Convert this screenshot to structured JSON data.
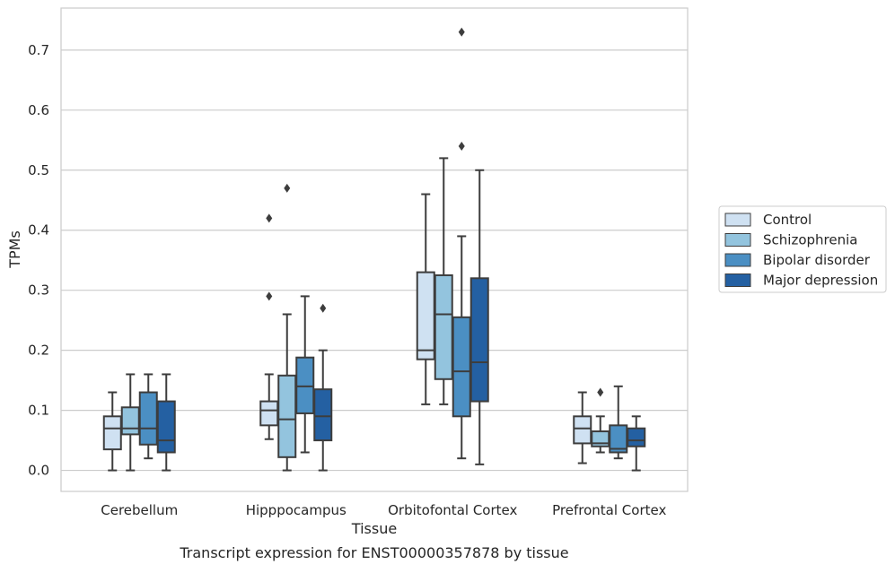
{
  "chart_data": {
    "type": "boxplot",
    "xlabel": "Tissue",
    "ylabel": "TPMs",
    "caption": "Transcript expression for ENST00000357878 by tissue",
    "ylim": [
      -0.035,
      0.77
    ],
    "yticks": [
      0.0,
      0.1,
      0.2,
      0.3,
      0.4,
      0.5,
      0.6,
      0.7
    ],
    "ytick_labels": [
      "0.0",
      "0.1",
      "0.2",
      "0.3",
      "0.4",
      "0.5",
      "0.6",
      "0.7"
    ],
    "grid": true,
    "legend_position": "right",
    "categories": [
      "Cerebellum",
      "Hipppocampus",
      "Orbitofontal Cortex",
      "Prefrontal Cortex"
    ],
    "series": [
      {
        "name": "Control",
        "color": "#cfe1f2",
        "boxes": [
          {
            "whislo": 0.0,
            "q1": 0.035,
            "med": 0.07,
            "q3": 0.09,
            "whishi": 0.13,
            "fliers": []
          },
          {
            "whislo": 0.052,
            "q1": 0.075,
            "med": 0.1,
            "q3": 0.115,
            "whishi": 0.16,
            "fliers": [
              0.29,
              0.42
            ]
          },
          {
            "whislo": 0.11,
            "q1": 0.185,
            "med": 0.2,
            "q3": 0.33,
            "whishi": 0.46,
            "fliers": []
          },
          {
            "whislo": 0.012,
            "q1": 0.045,
            "med": 0.07,
            "q3": 0.09,
            "whishi": 0.13,
            "fliers": []
          }
        ]
      },
      {
        "name": "Schizophrenia",
        "color": "#93c4de",
        "boxes": [
          {
            "whislo": 0.0,
            "q1": 0.06,
            "med": 0.07,
            "q3": 0.105,
            "whishi": 0.16,
            "fliers": []
          },
          {
            "whislo": 0.0,
            "q1": 0.022,
            "med": 0.085,
            "q3": 0.158,
            "whishi": 0.26,
            "fliers": [
              0.47
            ]
          },
          {
            "whislo": 0.11,
            "q1": 0.152,
            "med": 0.26,
            "q3": 0.325,
            "whishi": 0.52,
            "fliers": []
          },
          {
            "whislo": 0.03,
            "q1": 0.04,
            "med": 0.045,
            "q3": 0.065,
            "whishi": 0.09,
            "fliers": [
              0.13
            ]
          }
        ]
      },
      {
        "name": "Bipolar disorder",
        "color": "#4b8fc3",
        "boxes": [
          {
            "whislo": 0.02,
            "q1": 0.043,
            "med": 0.07,
            "q3": 0.13,
            "whishi": 0.16,
            "fliers": []
          },
          {
            "whislo": 0.03,
            "q1": 0.095,
            "med": 0.14,
            "q3": 0.188,
            "whishi": 0.29,
            "fliers": []
          },
          {
            "whislo": 0.02,
            "q1": 0.09,
            "med": 0.165,
            "q3": 0.255,
            "whishi": 0.39,
            "fliers": [
              0.54,
              0.73
            ]
          },
          {
            "whislo": 0.02,
            "q1": 0.03,
            "med": 0.036,
            "q3": 0.075,
            "whishi": 0.14,
            "fliers": []
          }
        ]
      },
      {
        "name": "Major depression",
        "color": "#2460a2",
        "boxes": [
          {
            "whislo": 0.0,
            "q1": 0.03,
            "med": 0.05,
            "q3": 0.115,
            "whishi": 0.16,
            "fliers": []
          },
          {
            "whislo": 0.0,
            "q1": 0.05,
            "med": 0.09,
            "q3": 0.135,
            "whishi": 0.2,
            "fliers": [
              0.27
            ]
          },
          {
            "whislo": 0.01,
            "q1": 0.115,
            "med": 0.18,
            "q3": 0.32,
            "whishi": 0.5,
            "fliers": []
          },
          {
            "whislo": 0.0,
            "q1": 0.04,
            "med": 0.05,
            "q3": 0.07,
            "whishi": 0.09,
            "fliers": []
          }
        ]
      }
    ]
  }
}
